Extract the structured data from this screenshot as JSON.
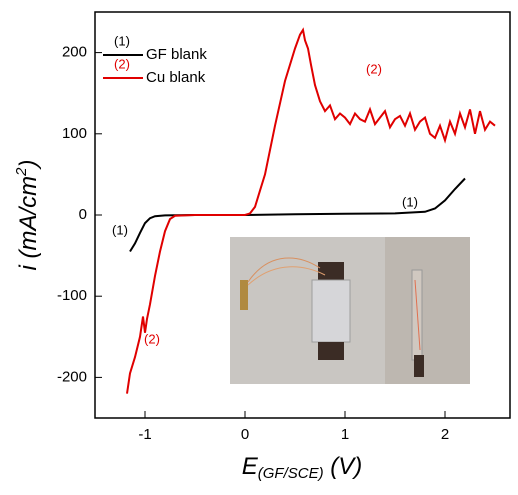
{
  "chart_data": {
    "type": "line",
    "x_label": {
      "main": "E",
      "sub": "(GF/SCE)",
      "end": " (V)"
    },
    "y_label": {
      "main": "i (mA/cm",
      "sup": "2",
      "end": ")"
    },
    "xlim": [
      -1.5,
      2.65
    ],
    "ylim": [
      -250,
      250
    ],
    "xticks": [
      -1,
      0,
      1,
      2
    ],
    "yticks": [
      -200,
      -100,
      0,
      100,
      200
    ],
    "series": [
      {
        "name": "GF blank",
        "tag": "(1)",
        "color": "#000000",
        "tag_color": "#000000",
        "x": [
          -1.15,
          -1.1,
          -1.05,
          -1.0,
          -0.95,
          -0.9,
          -0.8,
          -0.5,
          0,
          0.5,
          1,
          1.5,
          1.8,
          1.9,
          2.0,
          2.1,
          2.2
        ],
        "values": [
          -45,
          -35,
          -22,
          -10,
          -4,
          -1.5,
          -0.5,
          0,
          0,
          1,
          1.5,
          2,
          4,
          8,
          18,
          32,
          45
        ]
      },
      {
        "name": "Cu blank",
        "tag": "(2)",
        "color": "#e00000",
        "tag_color": "#e00000",
        "x": [
          -1.18,
          -1.15,
          -1.1,
          -1.05,
          -1.02,
          -1.0,
          -0.98,
          -0.95,
          -0.9,
          -0.85,
          -0.8,
          -0.75,
          -0.7,
          -0.5,
          0,
          0.05,
          0.1,
          0.15,
          0.2,
          0.3,
          0.4,
          0.5,
          0.55,
          0.58,
          0.6,
          0.63,
          0.66,
          0.7,
          0.75,
          0.8,
          0.85,
          0.9,
          0.95,
          1.0,
          1.05,
          1.1,
          1.15,
          1.2,
          1.25,
          1.3,
          1.35,
          1.4,
          1.45,
          1.5,
          1.55,
          1.6,
          1.65,
          1.7,
          1.75,
          1.8,
          1.85,
          1.9,
          1.95,
          2.0,
          2.05,
          2.1,
          2.15,
          2.2,
          2.25,
          2.3,
          2.35,
          2.4,
          2.45,
          2.5
        ],
        "values": [
          -220,
          -195,
          -175,
          -150,
          -125,
          -145,
          -128,
          -110,
          -75,
          -45,
          -20,
          -5,
          -1,
          0,
          0,
          2,
          10,
          30,
          50,
          110,
          165,
          205,
          222,
          228,
          215,
          205,
          185,
          160,
          140,
          128,
          135,
          118,
          125,
          120,
          112,
          125,
          118,
          115,
          130,
          112,
          120,
          128,
          108,
          118,
          122,
          110,
          125,
          105,
          115,
          120,
          100,
          95,
          110,
          92,
          115,
          100,
          125,
          108,
          130,
          100,
          128,
          105,
          115,
          110
        ]
      }
    ],
    "annotations": [
      {
        "text": "(2)",
        "color": "#e00000"
      },
      {
        "text": "(1)",
        "color": "#000000"
      },
      {
        "text": "(1)",
        "color": "#000000"
      },
      {
        "text": "(2)",
        "color": "#e00000"
      }
    ]
  }
}
